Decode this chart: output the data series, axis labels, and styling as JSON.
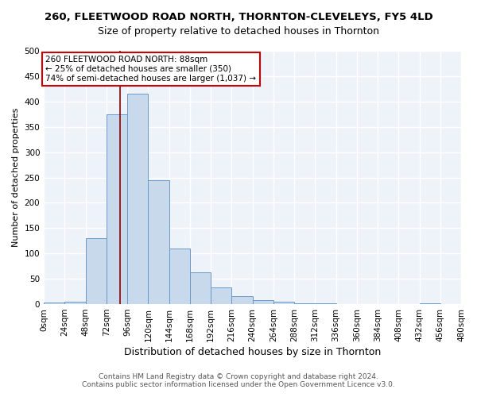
{
  "title": "260, FLEETWOOD ROAD NORTH, THORNTON-CLEVELEYS, FY5 4LD",
  "subtitle": "Size of property relative to detached houses in Thornton",
  "xlabel": "Distribution of detached houses by size in Thornton",
  "ylabel": "Number of detached properties",
  "footnote1": "Contains HM Land Registry data © Crown copyright and database right 2024.",
  "footnote2": "Contains public sector information licensed under the Open Government Licence v3.0.",
  "bin_edges": [
    0,
    24,
    48,
    72,
    96,
    120,
    144,
    168,
    192,
    216,
    240,
    264,
    288,
    312,
    336,
    360,
    384,
    408,
    432,
    456,
    480
  ],
  "bar_values": [
    4,
    5,
    130,
    375,
    415,
    245,
    110,
    63,
    33,
    15,
    8,
    5,
    2,
    1,
    0,
    0,
    0,
    0,
    2,
    0
  ],
  "bar_facecolor": "#c9d9ec",
  "bar_edgecolor": "#6699cc",
  "property_size": 88,
  "red_line_color": "#8b0000",
  "annotation_line1": "260 FLEETWOOD ROAD NORTH: 88sqm",
  "annotation_line2": "← 25% of detached houses are smaller (350)",
  "annotation_line3": "74% of semi-detached houses are larger (1,037) →",
  "annotation_box_edgecolor": "#cc0000",
  "annotation_box_facecolor": "#ffffff",
  "ylim": [
    0,
    500
  ],
  "yticks": [
    0,
    50,
    100,
    150,
    200,
    250,
    300,
    350,
    400,
    450,
    500
  ],
  "bg_color": "#eef2f9",
  "grid_color": "#ffffff",
  "title_fontsize": 9.5,
  "subtitle_fontsize": 9,
  "xlabel_fontsize": 9,
  "ylabel_fontsize": 8,
  "tick_fontsize": 7.5,
  "annotation_fontsize": 7.5,
  "footnote_fontsize": 6.5
}
